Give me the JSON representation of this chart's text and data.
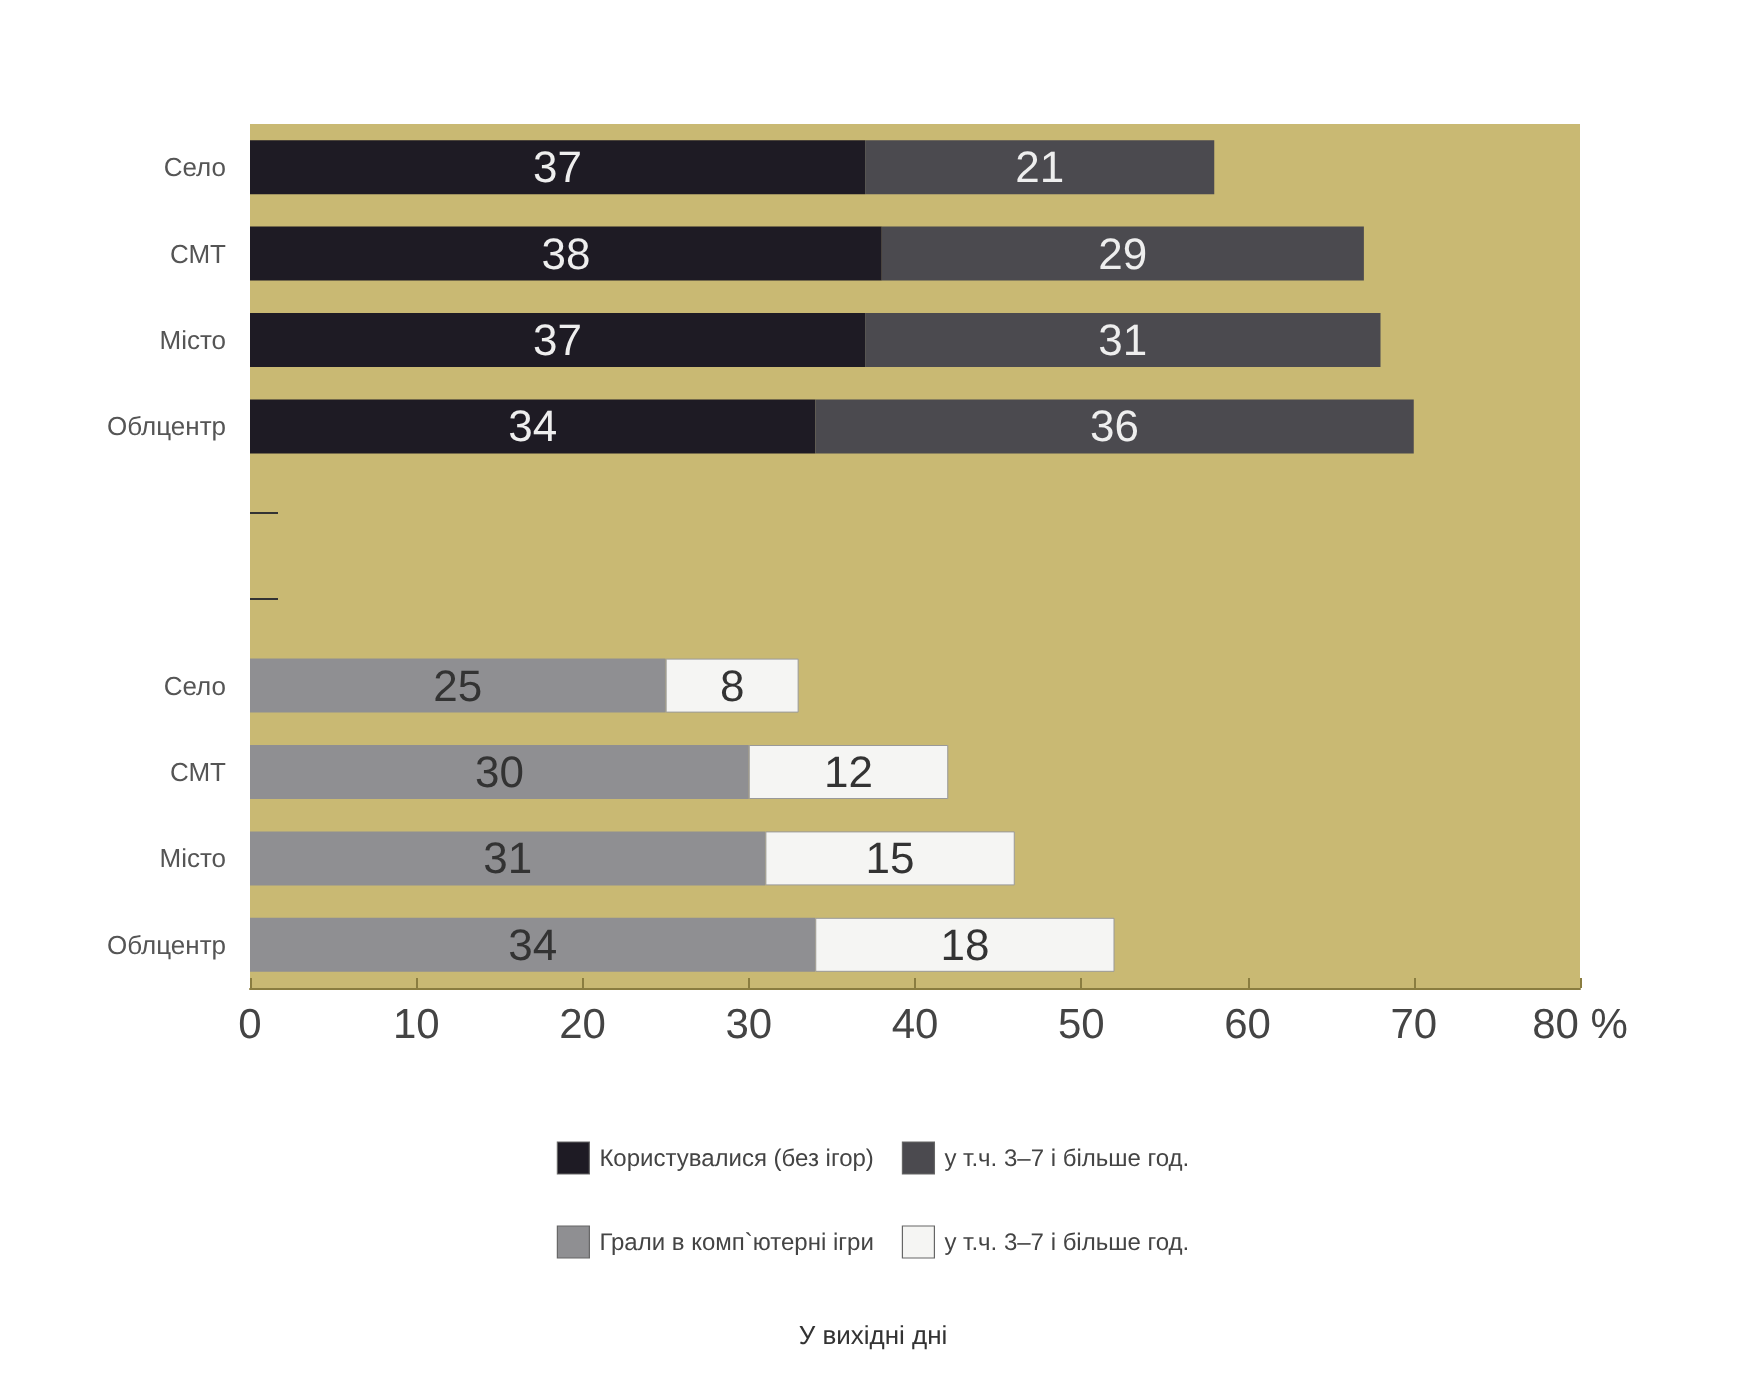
{
  "chart_data": {
    "type": "bar",
    "orientation": "horizontal",
    "stacked": true,
    "title": "У вихідні дні",
    "categories": [
      "Село",
      "СМТ",
      "Місто",
      "Облцентр",
      null,
      null,
      "Село",
      "СМТ",
      "Місто",
      "Облцентр"
    ],
    "series": [
      {
        "name": "Користувалися (без ігор)",
        "color": "#1e1b24",
        "values": [
          37,
          38,
          37,
          34,
          null,
          null,
          null,
          null,
          null,
          null
        ]
      },
      {
        "name": "у т.ч. 3–7 і більше год.",
        "color": "#4b4a4f",
        "values": [
          21,
          29,
          31,
          36,
          null,
          null,
          null,
          null,
          null,
          null
        ]
      },
      {
        "name": "Грали в комп`ютерні ігри",
        "color": "#8f8f92",
        "values": [
          null,
          null,
          null,
          null,
          null,
          null,
          25,
          30,
          31,
          34
        ]
      },
      {
        "name": "у т.ч. 3–7 і більше год.",
        "color": "#f5f5f3",
        "values": [
          null,
          null,
          null,
          null,
          null,
          null,
          8,
          12,
          15,
          18
        ]
      }
    ],
    "xlim": [
      0,
      80
    ],
    "xticks": [
      0,
      10,
      20,
      30,
      40,
      50,
      60,
      70,
      {
        "value": 80,
        "label": "80 %"
      }
    ],
    "data_labels": true,
    "legend": "bottom",
    "grid": false
  }
}
